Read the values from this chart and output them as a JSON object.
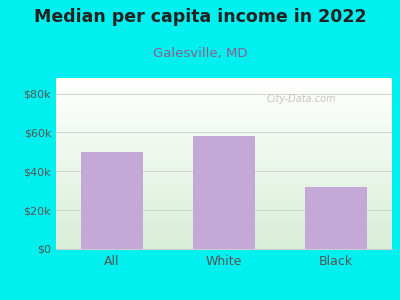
{
  "title": "Median per capita income in 2022",
  "subtitle": "Galesville, MD",
  "categories": [
    "All",
    "White",
    "Black"
  ],
  "values": [
    50000,
    58000,
    32000
  ],
  "bar_color": "#C4A8D8",
  "background_color": "#00EFEF",
  "plot_bg_topleft": "#D8EED8",
  "plot_bg_topright": "#FFFFFF",
  "plot_bg_bottom": "#D8EED8",
  "yticks": [
    0,
    20000,
    40000,
    60000,
    80000
  ],
  "ytick_labels": [
    "$0",
    "$20k",
    "$40k",
    "$60k",
    "$80k"
  ],
  "ylim": [
    0,
    88000
  ],
  "title_fontsize": 12.5,
  "subtitle_fontsize": 9.5,
  "subtitle_color": "#8B6090",
  "tick_color": "#555555",
  "grid_color": "#CCCCCC",
  "watermark_text": "City-Data.com",
  "watermark_color": "#BBBBBB"
}
